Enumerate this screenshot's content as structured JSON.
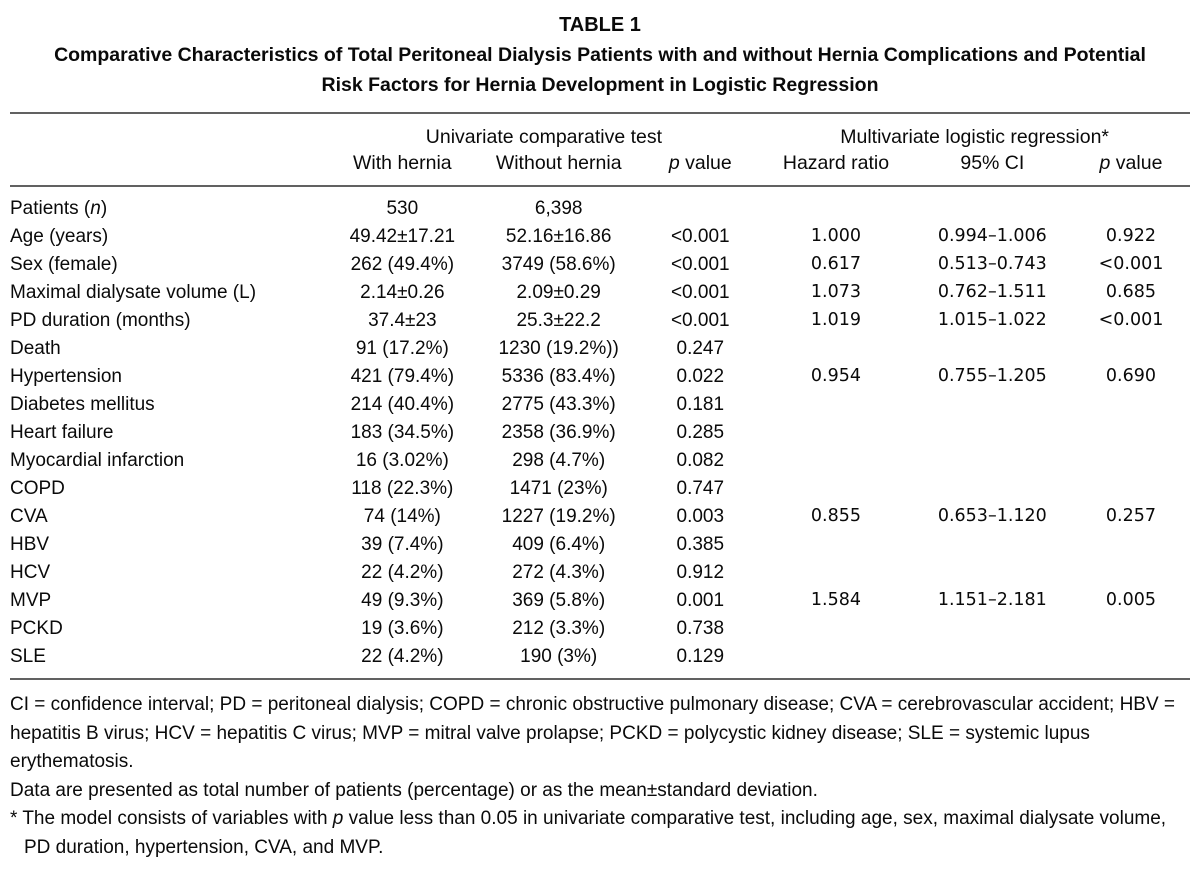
{
  "page": {
    "table_label": "TABLE 1",
    "caption": "Comparative Characteristics of Total Peritoneal Dialysis Patients with and without Hernia Complications and Potential Risk Factors for Hernia Development in Logistic Regression"
  },
  "table": {
    "group_headers": {
      "univariate": "Univariate comparative test",
      "multivariate": "Multivariate logistic regression*"
    },
    "col_headers": [
      [
        {
          "t": "With hernia"
        }
      ],
      [
        {
          "t": "Without hernia"
        }
      ],
      [
        {
          "t": "p",
          "i": true
        },
        {
          "t": " value"
        }
      ],
      [
        {
          "t": "Hazard ratio"
        }
      ],
      [
        {
          "t": "95% CI"
        }
      ],
      [
        {
          "t": "p",
          "i": true
        },
        {
          "t": " value"
        }
      ]
    ],
    "rows": [
      {
        "label": [
          {
            "t": "Patients ("
          },
          {
            "t": "n",
            "i": true
          },
          {
            "t": ")"
          }
        ],
        "cells": [
          "530",
          "6,398",
          "",
          "",
          "",
          ""
        ]
      },
      {
        "label": [
          {
            "t": "Age (years)"
          }
        ],
        "cells": [
          "49.42±17.21",
          "52.16±16.86",
          "<0.001",
          "1.000",
          "0.994–1.006",
          "0.922"
        ]
      },
      {
        "label": [
          {
            "t": "Sex (female)"
          }
        ],
        "cells": [
          "262 (49.4%)",
          "3749 (58.6%)",
          "<0.001",
          "0.617",
          "0.513–0.743",
          "<0.001"
        ]
      },
      {
        "label": [
          {
            "t": "Maximal dialysate volume (L)"
          }
        ],
        "cells": [
          "2.14±0.26",
          "2.09±0.29",
          "<0.001",
          "1.073",
          "0.762–1.511",
          "0.685"
        ]
      },
      {
        "label": [
          {
            "t": "PD duration (months)"
          }
        ],
        "cells": [
          "37.4±23",
          "25.3±22.2",
          "<0.001",
          "1.019",
          "1.015–1.022",
          "<0.001"
        ]
      },
      {
        "label": [
          {
            "t": "Death"
          }
        ],
        "cells": [
          "91 (17.2%)",
          "1230 (19.2%))",
          "0.247",
          "",
          "",
          ""
        ]
      },
      {
        "label": [
          {
            "t": "Hypertension"
          }
        ],
        "cells": [
          "421 (79.4%)",
          "5336 (83.4%)",
          "0.022",
          "0.954",
          "0.755–1.205",
          "0.690"
        ]
      },
      {
        "label": [
          {
            "t": "Diabetes mellitus"
          }
        ],
        "cells": [
          "214 (40.4%)",
          "2775 (43.3%)",
          "0.181",
          "",
          "",
          ""
        ]
      },
      {
        "label": [
          {
            "t": "Heart failure"
          }
        ],
        "cells": [
          "183 (34.5%)",
          "2358 (36.9%)",
          "0.285",
          "",
          "",
          ""
        ]
      },
      {
        "label": [
          {
            "t": "Myocardial infarction"
          }
        ],
        "cells": [
          "16 (3.02%)",
          "298 (4.7%)",
          "0.082",
          "",
          "",
          ""
        ]
      },
      {
        "label": [
          {
            "t": "COPD"
          }
        ],
        "cells": [
          "118 (22.3%)",
          "1471 (23%)",
          "0.747",
          "",
          "",
          ""
        ]
      },
      {
        "label": [
          {
            "t": "CVA"
          }
        ],
        "cells": [
          "74 (14%)",
          "1227 (19.2%)",
          "0.003",
          "0.855",
          "0.653–1.120",
          "0.257"
        ]
      },
      {
        "label": [
          {
            "t": "HBV"
          }
        ],
        "cells": [
          "39 (7.4%)",
          "409 (6.4%)",
          "0.385",
          "",
          "",
          ""
        ]
      },
      {
        "label": [
          {
            "t": "HCV"
          }
        ],
        "cells": [
          "22 (4.2%)",
          "272 (4.3%)",
          "0.912",
          "",
          "",
          ""
        ]
      },
      {
        "label": [
          {
            "t": "MVP"
          }
        ],
        "cells": [
          "49 (9.3%)",
          "369 (5.8%)",
          "0.001",
          "1.584",
          "1.151–2.181",
          "0.005"
        ]
      },
      {
        "label": [
          {
            "t": "PCKD"
          }
        ],
        "cells": [
          "19 (3.6%)",
          "212 (3.3%)",
          "0.738",
          "",
          "",
          ""
        ]
      },
      {
        "label": [
          {
            "t": "SLE"
          }
        ],
        "cells": [
          "22 (4.2%)",
          "190 (3%)",
          "0.129",
          "",
          "",
          ""
        ]
      }
    ]
  },
  "footnotes": [
    [
      {
        "t": "CI = confidence interval; PD = peritoneal dialysis; COPD = chronic obstructive pulmonary disease; CVA = cerebrovascular accident; HBV = hepatitis B virus; HCV = hepatitis C virus; MVP = mitral valve prolapse; PCKD = polycystic kidney disease; SLE = systemic lupus erythematosis."
      }
    ],
    [
      {
        "t": "Data are presented as total number of patients (percentage) or as the mean±standard deviation."
      }
    ],
    [
      {
        "t": "* The model consists of variables with "
      },
      {
        "t": "p",
        "i": true
      },
      {
        "t": " value less than 0.05 in univariate comparative test, including age, sex, maximal dialysate volume, PD duration, hypertension, CVA, and MVP."
      }
    ]
  ]
}
